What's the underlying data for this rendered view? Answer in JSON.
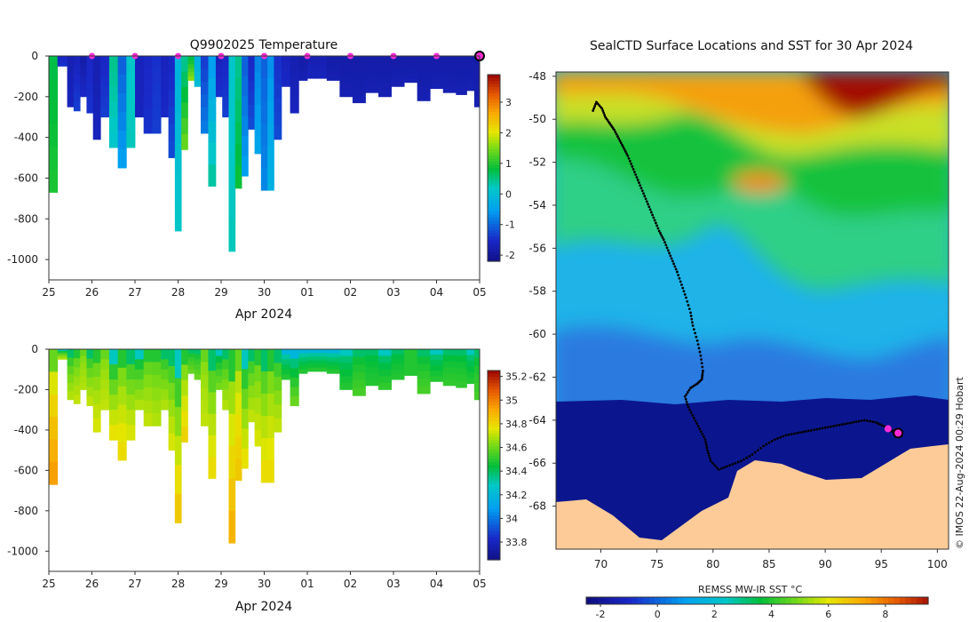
{
  "chart_data": [
    {
      "type": "heatmap",
      "title": "Q9902025  Temperature",
      "xlabel": "Apr 2024",
      "x_ticks": [
        "25",
        "26",
        "27",
        "28",
        "29",
        "30",
        "01",
        "02",
        "03",
        "04",
        "05"
      ],
      "y_ticks": [
        0,
        -200,
        -400,
        -600,
        -800,
        -1000
      ],
      "ylim": [
        -1100,
        0
      ],
      "colorbar_ticks": [
        3,
        2,
        1,
        0,
        -1,
        -2
      ],
      "colorbar_range": [
        -2.2,
        3.9
      ],
      "profile_x": [
        25.05,
        25.35,
        25.5,
        25.65,
        25.8,
        25.95,
        26.1,
        26.3,
        26.5,
        26.7,
        26.9,
        27.1,
        27.3,
        27.5,
        27.7,
        27.85,
        28.0,
        28.15,
        28.3,
        28.45,
        28.6,
        28.8,
        28.95,
        29.1,
        29.25,
        29.4,
        29.55,
        29.7,
        29.85,
        30.0,
        30.15,
        30.3,
        30.5,
        30.7,
        30.9,
        31.1,
        31.3,
        31.6,
        31.9,
        32.2,
        32.5,
        32.8,
        33.1,
        33.4,
        33.7,
        34.0,
        34.3,
        34.6,
        34.8,
        34.95
      ],
      "profile_depth": [
        670,
        50,
        250,
        270,
        200,
        280,
        410,
        300,
        450,
        550,
        450,
        300,
        380,
        380,
        300,
        500,
        860,
        460,
        120,
        150,
        380,
        640,
        200,
        300,
        960,
        650,
        590,
        360,
        480,
        660,
        660,
        410,
        150,
        280,
        120,
        110,
        110,
        120,
        200,
        230,
        180,
        200,
        150,
        130,
        220,
        160,
        180,
        190,
        170,
        250
      ],
      "surface_temp": [
        0.8,
        -1.5,
        -1.7,
        -1.6,
        -1.8,
        -1.5,
        -1.7,
        -1.5,
        0.5,
        -1.0,
        0.2,
        -1.6,
        -1.5,
        -1.4,
        -1.6,
        -1.5,
        -0.1,
        0.5,
        0.8,
        -0.2,
        -1.3,
        -0.5,
        -1.6,
        -1.5,
        0.2,
        0.5,
        -1.0,
        -1.5,
        -0.7,
        -1.0,
        -0.6,
        -1.4,
        -1.6,
        -1.7,
        -1.8,
        -1.7,
        -1.7,
        -1.8,
        -1.8,
        -1.8,
        -1.8,
        -1.8,
        -1.8,
        -1.8,
        -1.8,
        -1.8,
        -1.8,
        -1.8,
        -1.8,
        -1.8
      ],
      "deep_temp": [
        1.0,
        -1.4,
        -1.6,
        -1.3,
        -1.5,
        -1.4,
        -1.6,
        -1.3,
        0.2,
        -0.5,
        0.3,
        -1.6,
        -1.4,
        -1.3,
        -1.5,
        -1.2,
        0.2,
        1.4,
        1.6,
        0.0,
        -0.8,
        0.4,
        -1.4,
        -1.3,
        0.3,
        0.9,
        -0.5,
        -1.2,
        -0.4,
        -0.7,
        -0.2,
        -1.2,
        -1.5,
        -1.6,
        -1.7,
        -1.6,
        -1.6,
        -1.7,
        -1.7,
        -1.7,
        -1.7,
        -1.7,
        -1.7,
        -1.7,
        -1.7,
        -1.7,
        -1.7,
        -1.7,
        -1.7,
        -1.7
      ],
      "markers_x": [
        26,
        27,
        28,
        29,
        30,
        31,
        32,
        33,
        34
      ],
      "last_marker_x": 35
    },
    {
      "type": "heatmap",
      "title": "",
      "xlabel": "Apr 2024",
      "x_ticks": [
        "25",
        "26",
        "27",
        "28",
        "29",
        "30",
        "01",
        "02",
        "03",
        "04",
        "05"
      ],
      "y_ticks": [
        0,
        -200,
        -400,
        -600,
        -800,
        -1000
      ],
      "ylim": [
        -1100,
        0
      ],
      "colorbar_ticks": [
        35.2,
        35,
        34.8,
        34.6,
        34.4,
        34.2,
        34,
        33.8
      ],
      "colorbar_range": [
        33.65,
        35.25
      ],
      "surface_salinity": [
        34.6,
        34.3,
        34.4,
        34.5,
        34.6,
        34.4,
        34.5,
        34.6,
        34.3,
        34.5,
        34.4,
        34.3,
        34.5,
        34.5,
        34.4,
        34.4,
        34.3,
        34.5,
        34.4,
        34.4,
        34.6,
        34.4,
        34.3,
        34.4,
        34.5,
        34.6,
        34.3,
        34.4,
        34.5,
        34.4,
        34.5,
        34.4,
        34.2,
        34.2,
        34.2,
        34.2,
        34.2,
        34.2,
        34.3,
        34.4,
        34.4,
        34.3,
        34.4,
        34.5,
        34.4,
        34.3,
        34.4,
        34.4,
        34.3,
        34.4
      ],
      "deep_salinity": [
        34.95,
        34.7,
        34.7,
        34.72,
        34.7,
        34.72,
        34.75,
        34.72,
        34.78,
        34.8,
        34.75,
        34.7,
        34.72,
        34.7,
        34.7,
        34.75,
        34.85,
        34.82,
        34.6,
        34.6,
        34.72,
        34.8,
        34.62,
        34.7,
        34.9,
        34.85,
        34.78,
        34.72,
        34.75,
        34.8,
        34.8,
        34.72,
        34.5,
        34.6,
        34.5,
        34.5,
        34.5,
        34.5,
        34.5,
        34.55,
        34.5,
        34.52,
        34.5,
        34.5,
        34.55,
        34.5,
        34.52,
        34.52,
        34.5,
        34.55
      ]
    },
    {
      "type": "heatmap",
      "title": "SealCTD Surface Locations and SST for 30 Apr 2024",
      "xlabel": "",
      "x_ticks": [
        "70",
        "75",
        "80",
        "85",
        "90",
        "95",
        "100"
      ],
      "y_ticks": [
        "-48",
        "-50",
        "-52",
        "-54",
        "-56",
        "-58",
        "-60",
        "-62",
        "-64",
        "-66",
        "-68"
      ],
      "xlim": [
        66,
        101
      ],
      "ylim": [
        -70,
        -47.8
      ],
      "colorbar_label": "REMSS MW-IR SST °C",
      "colorbar_ticks": [
        "-2",
        "0",
        "2",
        "4",
        "6",
        "8"
      ],
      "colorbar_range": [
        -2.5,
        9.5
      ],
      "track_lon": [
        69.3,
        69.6,
        70.1,
        70.4,
        70.8,
        71.2,
        71.6,
        72.0,
        72.4,
        72.8,
        73.2,
        73.6,
        74.0,
        74.4,
        74.8,
        75.2,
        75.6,
        76.0,
        76.4,
        76.8,
        77.2,
        77.6,
        78.0,
        78.2,
        78.6,
        78.9,
        79.1,
        79.0,
        78.6,
        78.0,
        77.5,
        77.8,
        78.3,
        78.8,
        79.3,
        79.5,
        79.8,
        80.5,
        81.5,
        82.5,
        83.5,
        84.5,
        85.5,
        86.5,
        87.5,
        88.5,
        89.5,
        90.5,
        91.5,
        92.5,
        93.5,
        94.5,
        95.3,
        95.8,
        96.3
      ],
      "track_lat": [
        -49.6,
        -49.2,
        -49.5,
        -49.9,
        -50.2,
        -50.5,
        -50.9,
        -51.3,
        -51.7,
        -52.2,
        -52.7,
        -53.2,
        -53.7,
        -54.2,
        -54.7,
        -55.2,
        -55.6,
        -56.1,
        -56.6,
        -57.1,
        -57.7,
        -58.3,
        -59.0,
        -59.6,
        -60.3,
        -61.0,
        -61.7,
        -62.1,
        -62.3,
        -62.5,
        -62.9,
        -63.4,
        -63.9,
        -64.4,
        -64.9,
        -65.4,
        -65.9,
        -66.3,
        -66.1,
        -65.9,
        -65.6,
        -65.2,
        -64.9,
        -64.7,
        -64.6,
        -64.5,
        -64.4,
        -64.3,
        -64.2,
        -64.1,
        -64.0,
        -64.1,
        -64.3,
        -64.5,
        -64.5
      ],
      "markers_lon": [
        95.6,
        96.5
      ],
      "markers_lat": [
        -64.4,
        -64.6
      ]
    }
  ],
  "credit": "© IMOS 22-Aug-2024 00:29 Hobart"
}
